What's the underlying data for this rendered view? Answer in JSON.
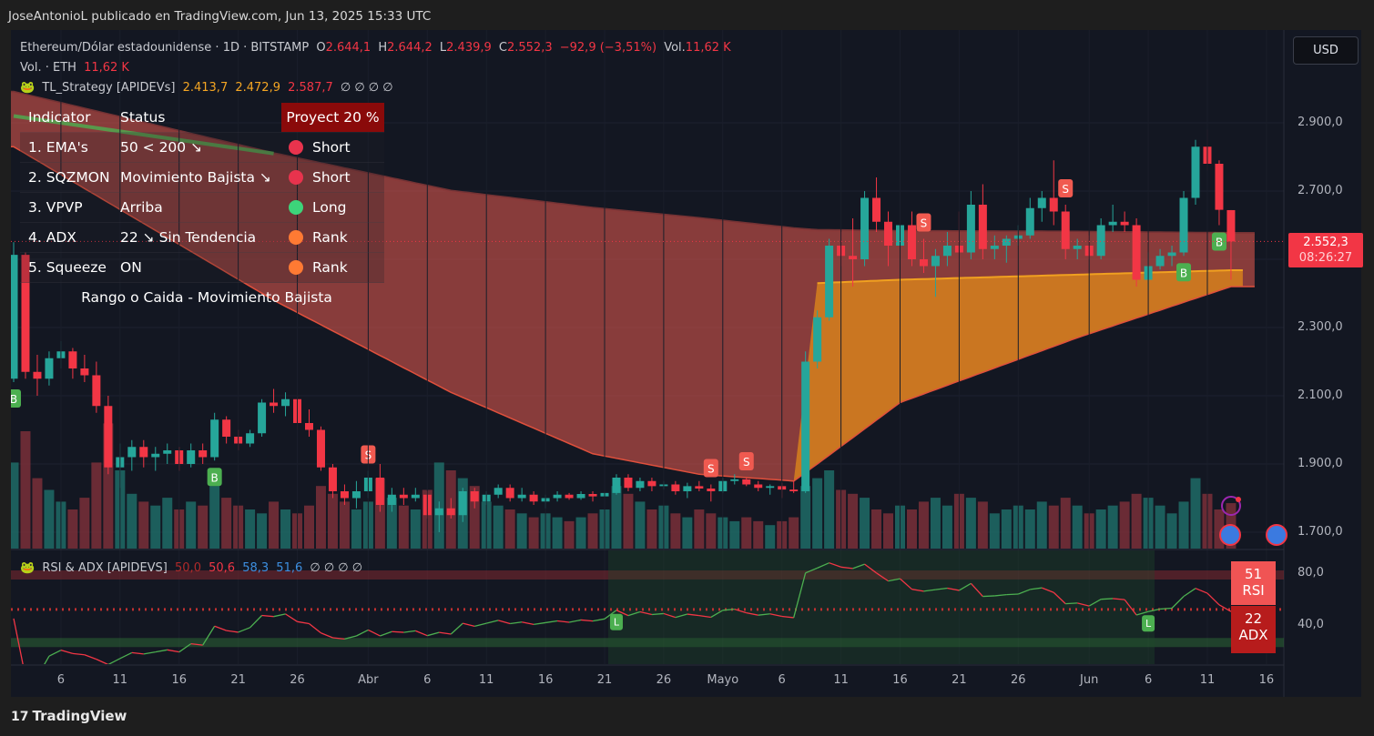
{
  "topbar": {
    "attribution": "JoseAntonioL publicado en TradingView.com, Jun 13, 2025 15:33 UTC"
  },
  "legend": {
    "symbol": "Ethereum/Dólar estadounidense · 1D · BITSTAMP",
    "o_label": "O",
    "o": "2.644,1",
    "h_label": "H",
    "h": "2.644,2",
    "l_label": "L",
    "l": "2.439,9",
    "c_label": "C",
    "c": "2.552,3",
    "change": "−92,9 (−3,51%)",
    "vol_label": "Vol.",
    "vol": "11,62 K",
    "vol_line_label": "Vol. · ETH",
    "vol_line_value": "11,62 K",
    "strategy_name": "TL_Strategy [APIDEVs]",
    "strategy_v1": "2.413,7",
    "strategy_v2": "2.472,9",
    "strategy_v3": "2.587,7",
    "strategy_empty": "∅ ∅ ∅ ∅",
    "rsi_name": "RSI & ADX [APIDEVS]",
    "rsi_v1": "50,0",
    "rsi_v2": "50,6",
    "rsi_v3": "58,3",
    "rsi_v4": "51,6",
    "rsi_empty": "∅ ∅ ∅ ∅"
  },
  "currency_button": "USD",
  "table": {
    "headers": [
      "Indicator",
      "Status",
      "Proyect 20 %"
    ],
    "rows": [
      {
        "indicator": "1. EMA's",
        "status": "50 < 200 ↘",
        "signal": "Short",
        "color": "#e8334d"
      },
      {
        "indicator": "2. SQZMON",
        "status": "Movimiento Bajista ↘",
        "signal": "Short",
        "color": "#e8334d"
      },
      {
        "indicator": "3. VPVP",
        "status": "Arriba",
        "signal": "Long",
        "color": "#3dd47a"
      },
      {
        "indicator": "4. ADX",
        "status": "22 ↘ Sin Tendencia",
        "signal": "Rank",
        "color": "#ff7a33"
      },
      {
        "indicator": "5. Squeeze",
        "status": "ON",
        "signal": "Rank",
        "color": "#ff7a33"
      }
    ],
    "footer": "Rango o Caida - Movimiento Bajista"
  },
  "price_label": {
    "price": "2.552,3",
    "countdown": "08:26:27"
  },
  "rsi_box": {
    "value": "51",
    "label": "RSI"
  },
  "adx_box": {
    "value": "22",
    "label": "ADX"
  },
  "brand": "TradingView",
  "chart_data": {
    "type": "candlestick",
    "title": "Ethereum/Dólar estadounidense · 1D · BITSTAMP",
    "start_date": "2025-03-02",
    "ylim": [
      1700,
      2900
    ],
    "y_ticks": [
      {
        "v": 2900,
        "label": "2.900,0"
      },
      {
        "v": 2700,
        "label": "2.700,0"
      },
      {
        "v": 2500,
        "label": ""
      },
      {
        "v": 2300,
        "label": "2.300,0"
      },
      {
        "v": 2100,
        "label": "2.100,0"
      },
      {
        "v": 1900,
        "label": "1.900,0"
      },
      {
        "v": 1700,
        "label": "1.700,0"
      }
    ],
    "x_ticks": [
      {
        "i": 4,
        "label": "6"
      },
      {
        "i": 9,
        "label": "11"
      },
      {
        "i": 14,
        "label": "16"
      },
      {
        "i": 19,
        "label": "21"
      },
      {
        "i": 24,
        "label": "26"
      },
      {
        "i": 30,
        "label": "Abr"
      },
      {
        "i": 35,
        "label": "6"
      },
      {
        "i": 40,
        "label": "11"
      },
      {
        "i": 45,
        "label": "16"
      },
      {
        "i": 50,
        "label": "21"
      },
      {
        "i": 55,
        "label": "26"
      },
      {
        "i": 60,
        "label": "Mayo"
      },
      {
        "i": 65,
        "label": "6"
      },
      {
        "i": 70,
        "label": "11"
      },
      {
        "i": 75,
        "label": "16"
      },
      {
        "i": 80,
        "label": "21"
      },
      {
        "i": 85,
        "label": "26"
      },
      {
        "i": 91,
        "label": "Jun"
      },
      {
        "i": 96,
        "label": "6"
      },
      {
        "i": 101,
        "label": "11"
      },
      {
        "i": 106,
        "label": "16"
      }
    ],
    "ohlc": [
      [
        2150,
        2550,
        2140,
        2513
      ],
      [
        2513,
        2520,
        2150,
        2170
      ],
      [
        2170,
        2220,
        2100,
        2150
      ],
      [
        2150,
        2230,
        2130,
        2210
      ],
      [
        2210,
        2260,
        2180,
        2230
      ],
      [
        2230,
        2240,
        2150,
        2180
      ],
      [
        2180,
        2220,
        2140,
        2160
      ],
      [
        2160,
        2200,
        2050,
        2070
      ],
      [
        2070,
        2100,
        1870,
        1890
      ],
      [
        1890,
        1960,
        1830,
        1920
      ],
      [
        1920,
        1970,
        1880,
        1950
      ],
      [
        1950,
        1970,
        1890,
        1920
      ],
      [
        1920,
        1950,
        1880,
        1930
      ],
      [
        1930,
        1960,
        1900,
        1940
      ],
      [
        1940,
        1950,
        1880,
        1900
      ],
      [
        1900,
        1960,
        1890,
        1940
      ],
      [
        1940,
        1960,
        1900,
        1920
      ],
      [
        1920,
        2050,
        1910,
        2030
      ],
      [
        2030,
        2040,
        1960,
        1980
      ],
      [
        1980,
        2000,
        1940,
        1960
      ],
      [
        1960,
        2000,
        1950,
        1990
      ],
      [
        1990,
        2090,
        1980,
        2080
      ],
      [
        2080,
        2120,
        2050,
        2070
      ],
      [
        2070,
        2110,
        2040,
        2090
      ],
      [
        2090,
        2100,
        2000,
        2020
      ],
      [
        2020,
        2060,
        1980,
        2000
      ],
      [
        2000,
        2010,
        1880,
        1890
      ],
      [
        1890,
        1900,
        1800,
        1820
      ],
      [
        1820,
        1840,
        1780,
        1800
      ],
      [
        1800,
        1850,
        1770,
        1820
      ],
      [
        1820,
        1880,
        1800,
        1860
      ],
      [
        1860,
        1900,
        1760,
        1780
      ],
      [
        1780,
        1830,
        1760,
        1810
      ],
      [
        1810,
        1830,
        1780,
        1800
      ],
      [
        1800,
        1830,
        1790,
        1810
      ],
      [
        1810,
        1820,
        1740,
        1750
      ],
      [
        1750,
        1790,
        1700,
        1770
      ],
      [
        1770,
        1800,
        1740,
        1750
      ],
      [
        1750,
        1830,
        1730,
        1820
      ],
      [
        1820,
        1830,
        1770,
        1790
      ],
      [
        1790,
        1820,
        1780,
        1810
      ],
      [
        1810,
        1840,
        1800,
        1830
      ],
      [
        1830,
        1840,
        1790,
        1800
      ],
      [
        1800,
        1830,
        1790,
        1810
      ],
      [
        1810,
        1820,
        1780,
        1790
      ],
      [
        1790,
        1810,
        1770,
        1800
      ],
      [
        1800,
        1820,
        1790,
        1810
      ],
      [
        1810,
        1815,
        1795,
        1800
      ],
      [
        1800,
        1820,
        1795,
        1812
      ],
      [
        1812,
        1820,
        1790,
        1805
      ],
      [
        1805,
        1830,
        1795,
        1815
      ],
      [
        1815,
        1870,
        1810,
        1860
      ],
      [
        1860,
        1870,
        1820,
        1830
      ],
      [
        1830,
        1860,
        1820,
        1850
      ],
      [
        1850,
        1860,
        1820,
        1835
      ],
      [
        1835,
        1850,
        1825,
        1840
      ],
      [
        1840,
        1850,
        1810,
        1820
      ],
      [
        1820,
        1845,
        1800,
        1835
      ],
      [
        1835,
        1850,
        1820,
        1828
      ],
      [
        1828,
        1840,
        1790,
        1820
      ],
      [
        1820,
        1860,
        1815,
        1850
      ],
      [
        1850,
        1870,
        1840,
        1855
      ],
      [
        1855,
        1860,
        1835,
        1840
      ],
      [
        1840,
        1850,
        1820,
        1830
      ],
      [
        1830,
        1840,
        1810,
        1835
      ],
      [
        1835,
        1845,
        1800,
        1825
      ],
      [
        1825,
        1850,
        1815,
        1820
      ],
      [
        1820,
        2230,
        1815,
        2200
      ],
      [
        2200,
        2350,
        2180,
        2330
      ],
      [
        2330,
        2560,
        2320,
        2540
      ],
      [
        2540,
        2580,
        2480,
        2510
      ],
      [
        2510,
        2620,
        2420,
        2500
      ],
      [
        2500,
        2700,
        2480,
        2680
      ],
      [
        2680,
        2740,
        2580,
        2610
      ],
      [
        2610,
        2640,
        2480,
        2540
      ],
      [
        2540,
        2620,
        2510,
        2600
      ],
      [
        2600,
        2640,
        2480,
        2500
      ],
      [
        2500,
        2560,
        2460,
        2480
      ],
      [
        2480,
        2530,
        2390,
        2510
      ],
      [
        2510,
        2580,
        2480,
        2540
      ],
      [
        2540,
        2640,
        2450,
        2520
      ],
      [
        2520,
        2700,
        2500,
        2660
      ],
      [
        2660,
        2720,
        2500,
        2530
      ],
      [
        2530,
        2570,
        2500,
        2540
      ],
      [
        2540,
        2570,
        2490,
        2560
      ],
      [
        2560,
        2600,
        2540,
        2570
      ],
      [
        2570,
        2680,
        2560,
        2650
      ],
      [
        2650,
        2700,
        2610,
        2680
      ],
      [
        2680,
        2790,
        2600,
        2640
      ],
      [
        2640,
        2660,
        2500,
        2530
      ],
      [
        2530,
        2560,
        2500,
        2540
      ],
      [
        2540,
        2570,
        2500,
        2510
      ],
      [
        2510,
        2620,
        2500,
        2600
      ],
      [
        2600,
        2660,
        2580,
        2610
      ],
      [
        2610,
        2640,
        2580,
        2600
      ],
      [
        2600,
        2620,
        2420,
        2440
      ],
      [
        2440,
        2520,
        2410,
        2480
      ],
      [
        2480,
        2530,
        2470,
        2510
      ],
      [
        2510,
        2540,
        2480,
        2520
      ],
      [
        2520,
        2700,
        2510,
        2680
      ],
      [
        2680,
        2850,
        2660,
        2830
      ],
      [
        2830,
        2880,
        2760,
        2780
      ],
      [
        2780,
        2790,
        2600,
        2645
      ],
      [
        2644.1,
        2644.2,
        2439.9,
        2552.3
      ]
    ],
    "volume_k": [
      22,
      30,
      18,
      15,
      12,
      10,
      13,
      22,
      32,
      20,
      14,
      12,
      11,
      13,
      10,
      12,
      11,
      16,
      13,
      11,
      10,
      9,
      12,
      10,
      9,
      11,
      16,
      14,
      12,
      10,
      12,
      18,
      13,
      11,
      10,
      15,
      22,
      20,
      18,
      16,
      12,
      11,
      10,
      9,
      8,
      9,
      8,
      7,
      8,
      9,
      10,
      16,
      14,
      12,
      10,
      11,
      9,
      8,
      10,
      9,
      8,
      7,
      8,
      7,
      6,
      7,
      8,
      16,
      18,
      20,
      15,
      14,
      13,
      10,
      9,
      11,
      10,
      12,
      13,
      11,
      14,
      13,
      12,
      9,
      10,
      11,
      10,
      12,
      11,
      13,
      11,
      9,
      10,
      11,
      12,
      14,
      13,
      11,
      9,
      12,
      18,
      14,
      10,
      11.62
    ],
    "cloud": [
      {
        "i": 0,
        "upper": 2990,
        "lower": 2830
      },
      {
        "i": 22,
        "upper": 2810,
        "lower": 2380
      },
      {
        "i": 37,
        "upper": 2700,
        "lower": 2110
      },
      {
        "i": 49,
        "upper": 2650,
        "lower": 1930
      },
      {
        "i": 58,
        "upper": 2620,
        "lower": 1870
      },
      {
        "i": 66,
        "upper": 2590,
        "lower": 1850
      },
      {
        "i": 68,
        "upper": 2585,
        "lower": 1900,
        "mid": 2430
      },
      {
        "i": 75,
        "upper": 2582,
        "lower": 2080,
        "mid": 2440
      },
      {
        "i": 90,
        "upper": 2580,
        "lower": 2270,
        "mid": 2455
      },
      {
        "i": 103,
        "upper": 2576,
        "lower": 2420,
        "mid": 2468
      }
    ],
    "ema_green": [
      {
        "i": 0,
        "v": 2920
      },
      {
        "i": 22,
        "v": 2810
      }
    ],
    "signals": [
      {
        "i": 0,
        "type": "B"
      },
      {
        "i": 17,
        "type": "B"
      },
      {
        "i": 30,
        "type": "S"
      },
      {
        "i": 59,
        "type": "S"
      },
      {
        "i": 62,
        "type": "S"
      },
      {
        "i": 77,
        "type": "S"
      },
      {
        "i": 89,
        "type": "S"
      },
      {
        "i": 99,
        "type": "B"
      },
      {
        "i": 102,
        "type": "B"
      }
    ],
    "rsi_pane": {
      "ylim": [
        20,
        100
      ],
      "y_ticks": [
        {
          "v": 80,
          "label": "80,0"
        },
        {
          "v": 40,
          "label": "40,0"
        }
      ],
      "L_markers": [
        51,
        96
      ]
    },
    "colors": {
      "up": "#26a69a",
      "down": "#f23645",
      "cloud_red": "#c8504a",
      "cloud_orange": "#e08a1a",
      "green_line": "#4caf50"
    }
  }
}
